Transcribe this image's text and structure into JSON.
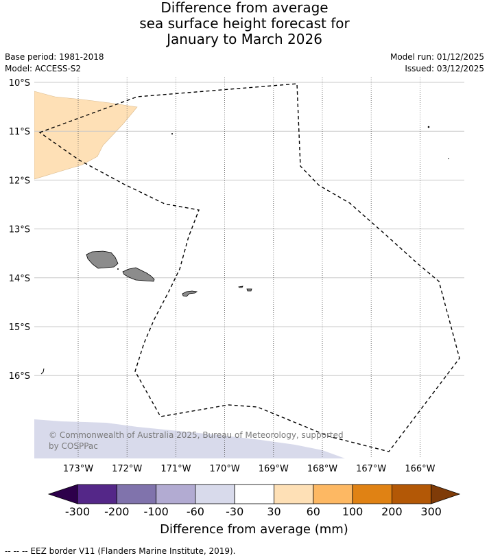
{
  "title": {
    "line1": "Difference from average",
    "line2": "sea surface height forecast for",
    "line3": "January to March 2026"
  },
  "meta": {
    "base_period": "Base period: 1981-2018",
    "model": "Model: ACCESS-S2",
    "model_run": "Model run: 01/12/2025",
    "issued": "Issued: 03/12/2025"
  },
  "map": {
    "lon_range": [
      -173.9,
      -165.1
    ],
    "lat_range": [
      -17.7,
      -9.95
    ],
    "lon_ticks": [
      {
        "value": -173,
        "label": "173°W"
      },
      {
        "value": -172,
        "label": "172°W"
      },
      {
        "value": -171,
        "label": "171°W"
      },
      {
        "value": -170,
        "label": "170°W"
      },
      {
        "value": -169,
        "label": "169°W"
      },
      {
        "value": -168,
        "label": "168°W"
      },
      {
        "value": -167,
        "label": "167°W"
      },
      {
        "value": -166,
        "label": "166°W"
      }
    ],
    "lat_ticks": [
      {
        "value": -10,
        "label": "10°S"
      },
      {
        "value": -11,
        "label": "11°S"
      },
      {
        "value": -12,
        "label": "12°S"
      },
      {
        "value": -13,
        "label": "13°S"
      },
      {
        "value": -14,
        "label": "14°S"
      },
      {
        "value": -15,
        "label": "15°S"
      },
      {
        "value": -16,
        "label": "16°S"
      }
    ],
    "copyright": "© Commonwealth of Australia 2025, Bureau of Meteorology, supported by COSPPac",
    "colors": {
      "positive_patch": "#fee0b6",
      "negative_patch": "#d8daeb",
      "land": "#8c8c8c"
    }
  },
  "colorbar": {
    "title": "Difference from average (mm)",
    "labels": [
      "-300",
      "-200",
      "-100",
      "-60",
      "-30",
      "30",
      "60",
      "100",
      "200",
      "300"
    ],
    "colors": [
      "#542788",
      "#8073ac",
      "#b2abd2",
      "#d8daeb",
      "#ffffff",
      "#fee0b6",
      "#fdb863",
      "#e08214",
      "#b35806"
    ],
    "under_color": "#2d004b",
    "over_color": "#7f3b08"
  },
  "footer": "-- -- -- EEZ border V11 (Flanders Marine Institute, 2019)."
}
